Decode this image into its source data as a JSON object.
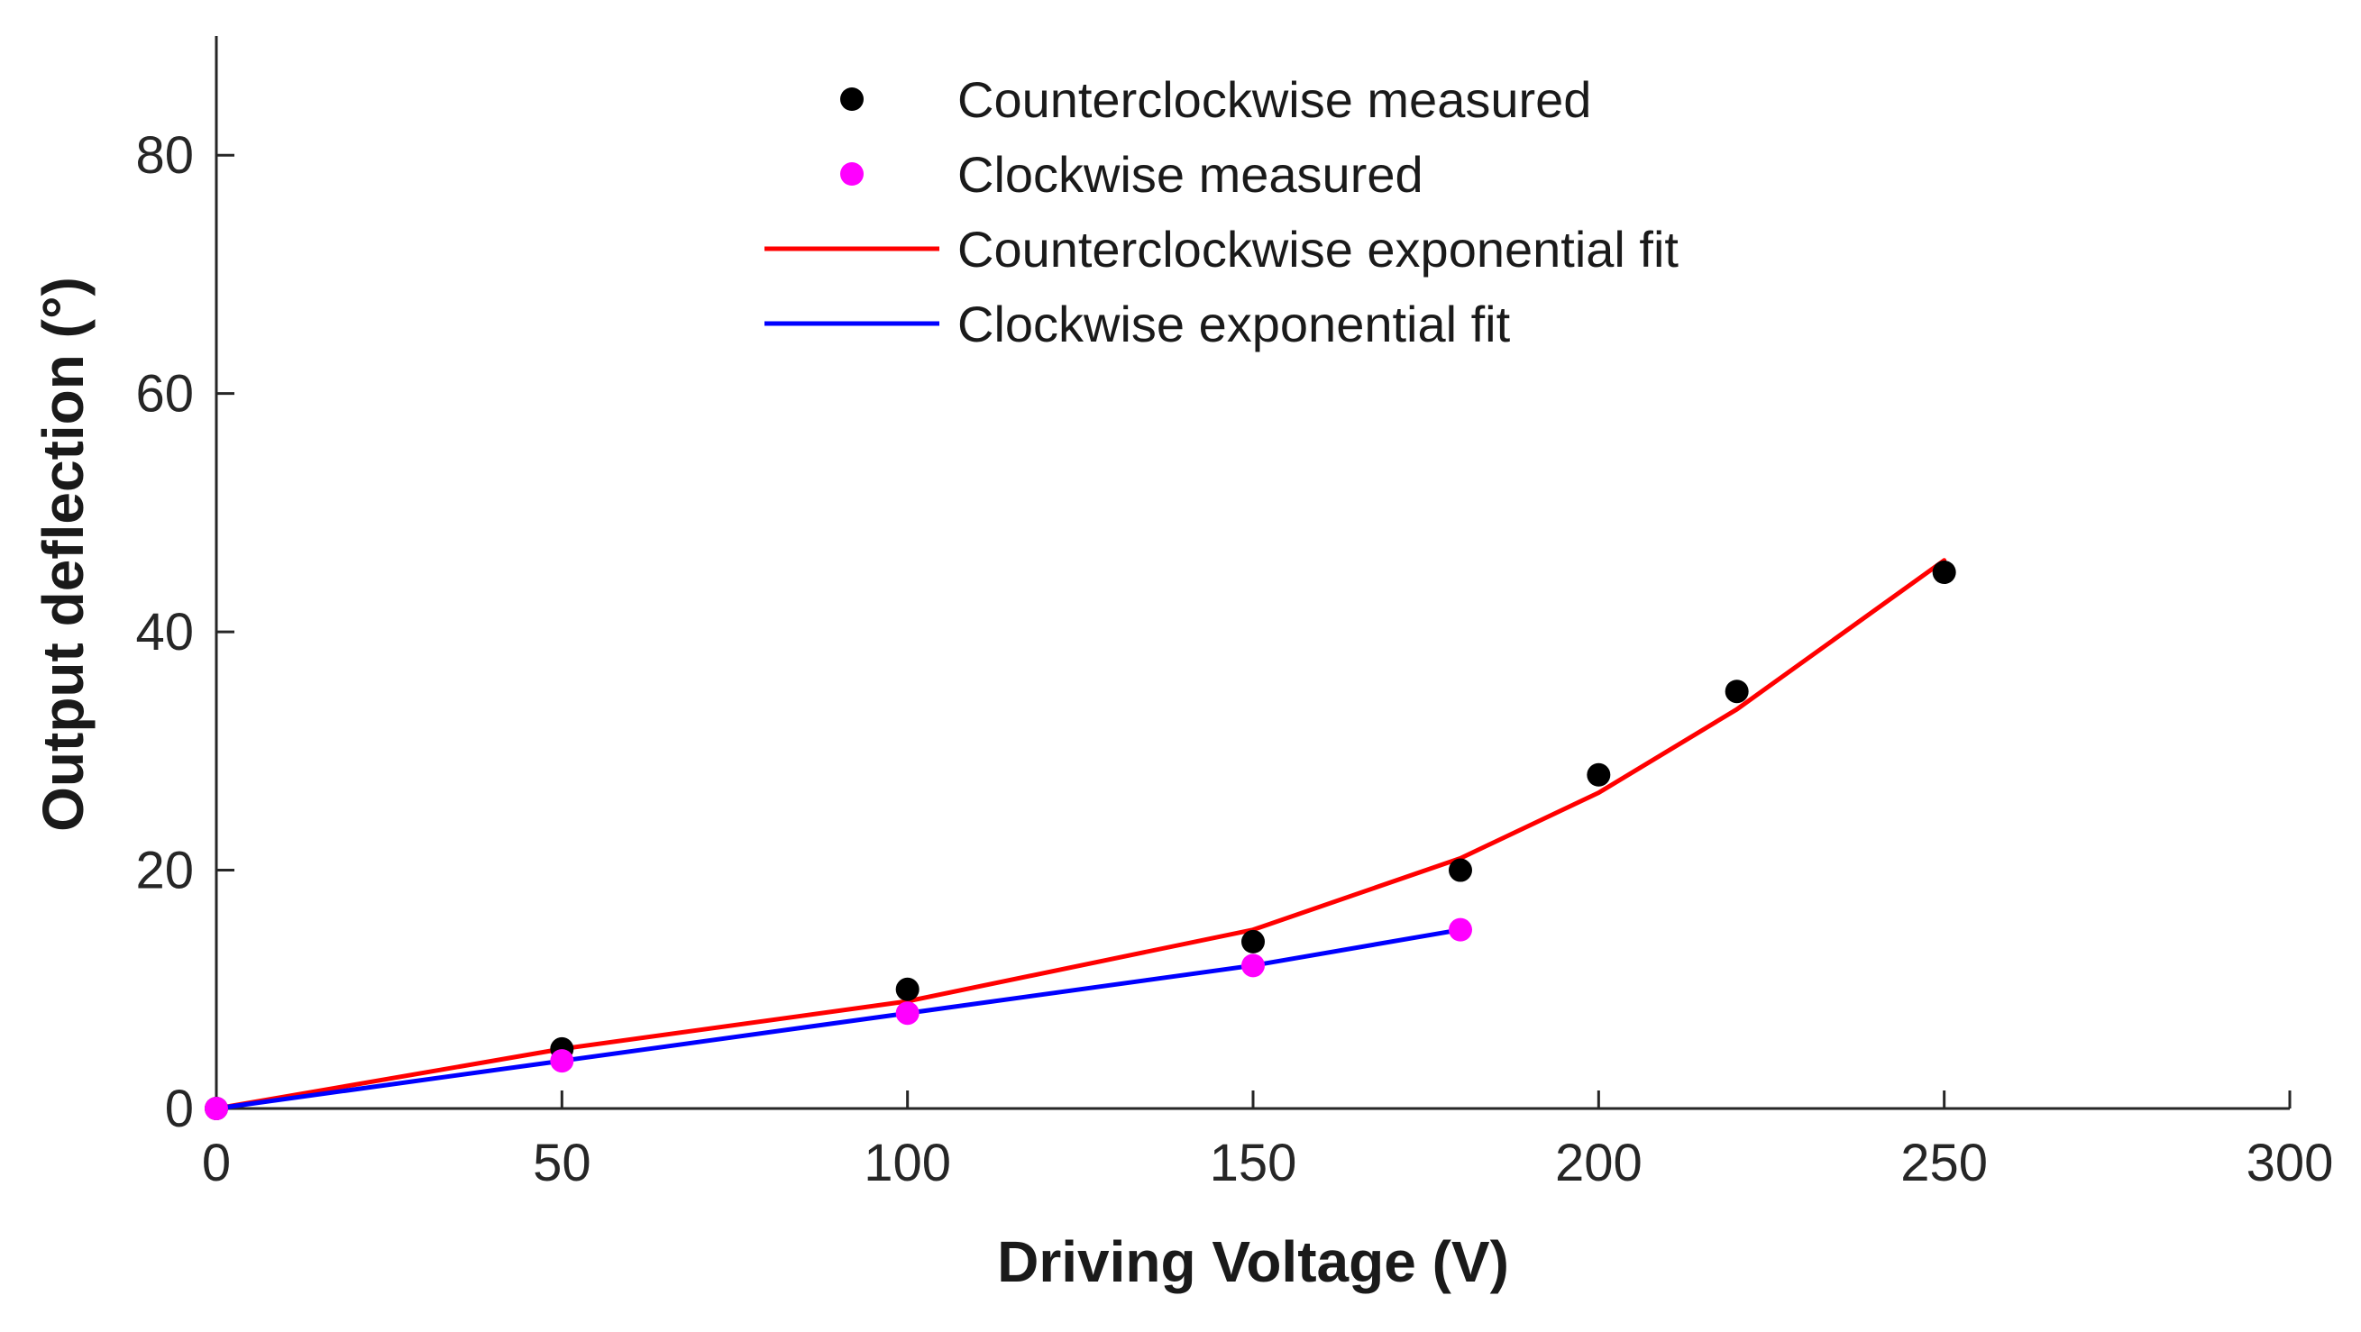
{
  "chart_data": {
    "type": "scatter",
    "xlabel": "Driving Voltage  (V)",
    "ylabel": "Output deflection (°)",
    "xlim": [
      0,
      300
    ],
    "ylim": [
      0,
      90
    ],
    "xticks": [
      0,
      50,
      100,
      150,
      200,
      250,
      300
    ],
    "yticks": [
      0,
      20,
      40,
      60,
      80
    ],
    "xtick_labels": [
      "0",
      "50",
      "100",
      "150",
      "200",
      "250",
      "300"
    ],
    "ytick_labels": [
      "0",
      "20",
      "40",
      "60",
      "80"
    ],
    "grid": false,
    "legend_position": "top-center",
    "series": [
      {
        "name": "Counterclockwise measured",
        "kind": "markers",
        "color": "#000000",
        "x": [
          0,
          50,
          100,
          150,
          180,
          200,
          220,
          250
        ],
        "y": [
          0,
          5,
          10,
          14,
          20,
          28,
          35,
          45
        ]
      },
      {
        "name": "Clockwise measured",
        "kind": "markers",
        "color": "#ff00ff",
        "x": [
          0,
          50,
          100,
          150,
          180
        ],
        "y": [
          0,
          4,
          8,
          12,
          15
        ]
      },
      {
        "name": "Counterclockwise exponential fit",
        "kind": "line",
        "color": "#ff0000",
        "x": [
          0,
          50,
          100,
          150,
          180,
          200,
          220,
          250
        ],
        "y": [
          0,
          5,
          9,
          15,
          21,
          26.5,
          33.5,
          46
        ]
      },
      {
        "name": "Clockwise exponential fit",
        "kind": "line",
        "color": "#0000ff",
        "x": [
          0,
          50,
          100,
          150,
          180
        ],
        "y": [
          0,
          4,
          8,
          12,
          15
        ]
      }
    ]
  }
}
